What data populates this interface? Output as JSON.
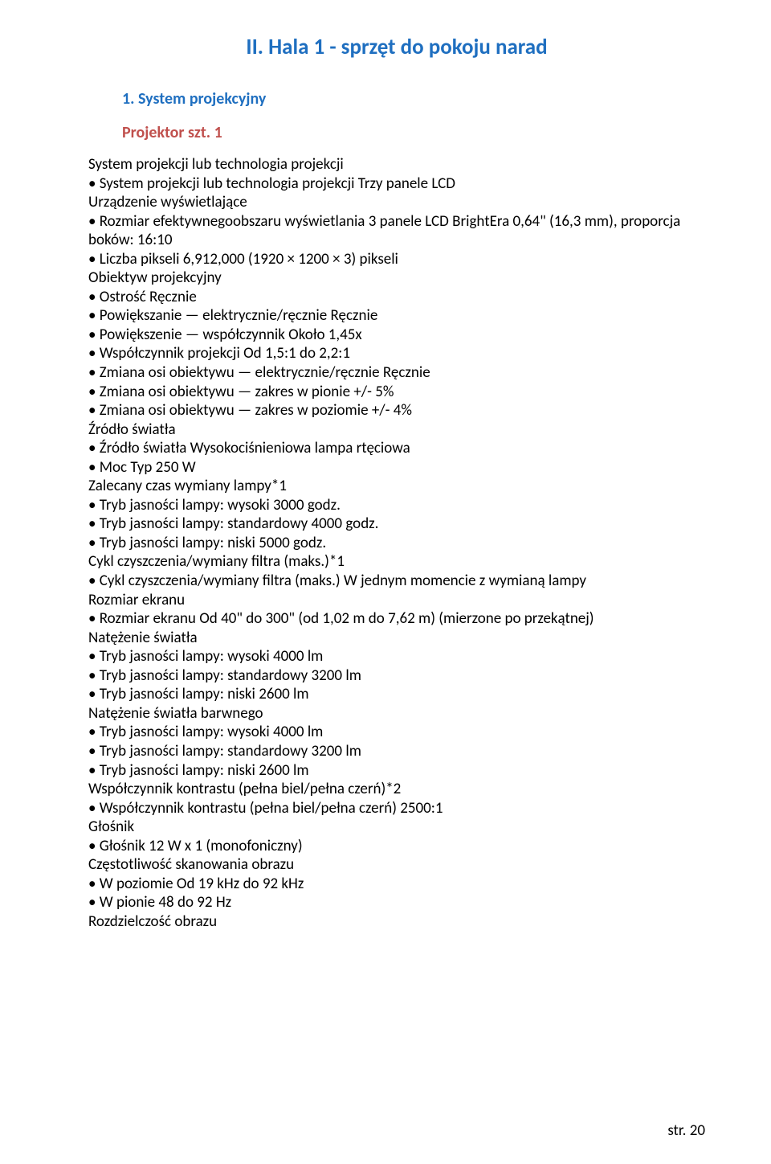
{
  "title": "II. Hala 1 - sprzęt do pokoju narad",
  "subitem": "1.   System projekcyjny",
  "subhead": "Projektor  szt. 1",
  "lines": [
    "System projekcji lub technologia projekcji",
    "• System projekcji lub technologia projekcji Trzy panele LCD",
    "Urządzenie wyświetlające",
    "• Rozmiar efektywnegoobszaru wyświetlania 3 panele LCD BrightEra 0,64\" (16,3 mm), proporcja boków: 16:10",
    "• Liczba pikseli 6,912,000 (1920 × 1200 × 3) pikseli",
    "Obiektyw projekcyjny",
    "• Ostrość Ręcznie",
    "• Powiększanie — elektrycznie/ręcznie Ręcznie",
    "• Powiększenie — współczynnik Około 1,45x",
    "• Współczynnik projekcji Od 1,5:1 do 2,2:1",
    "• Zmiana osi obiektywu — elektrycznie/ręcznie Ręcznie",
    "• Zmiana osi obiektywu — zakres w pionie +/- 5%",
    "• Zmiana osi obiektywu — zakres w poziomie +/- 4%",
    "Źródło światła",
    "• Źródło światła Wysokociśnieniowa lampa rtęciowa",
    "• Moc Typ 250 W",
    "Zalecany czas wymiany lampy*1",
    "• Tryb jasności lampy: wysoki 3000 godz.",
    "• Tryb jasności lampy: standardowy 4000 godz.",
    "• Tryb jasności lampy: niski 5000 godz.",
    "Cykl czyszczenia/wymiany filtra (maks.)*1",
    "• Cykl czyszczenia/wymiany filtra (maks.) W jednym momencie z wymianą lampy",
    "Rozmiar ekranu",
    "• Rozmiar ekranu Od 40\" do 300\" (od 1,02 m do 7,62 m) (mierzone po przekątnej)",
    "Natężenie światła",
    "• Tryb jasności lampy: wysoki 4000 lm",
    "• Tryb jasności lampy: standardowy 3200 lm",
    "• Tryb jasności lampy: niski 2600 lm",
    "Natężenie światła barwnego",
    "• Tryb jasności lampy: wysoki 4000 lm",
    "• Tryb jasności lampy: standardowy 3200 lm",
    "• Tryb jasności lampy: niski 2600 lm",
    "Współczynnik kontrastu (pełna biel/pełna czerń)*2",
    "• Współczynnik kontrastu (pełna biel/pełna czerń) 2500:1",
    "Głośnik",
    "• Głośnik 12 W x 1 (monofoniczny)",
    "Częstotliwość skanowania obrazu",
    "• W poziomie Od 19 kHz do 92 kHz",
    "• W pionie 48 do 92 Hz",
    "Rozdzielczość obrazu"
  ],
  "footer": "str. 20"
}
